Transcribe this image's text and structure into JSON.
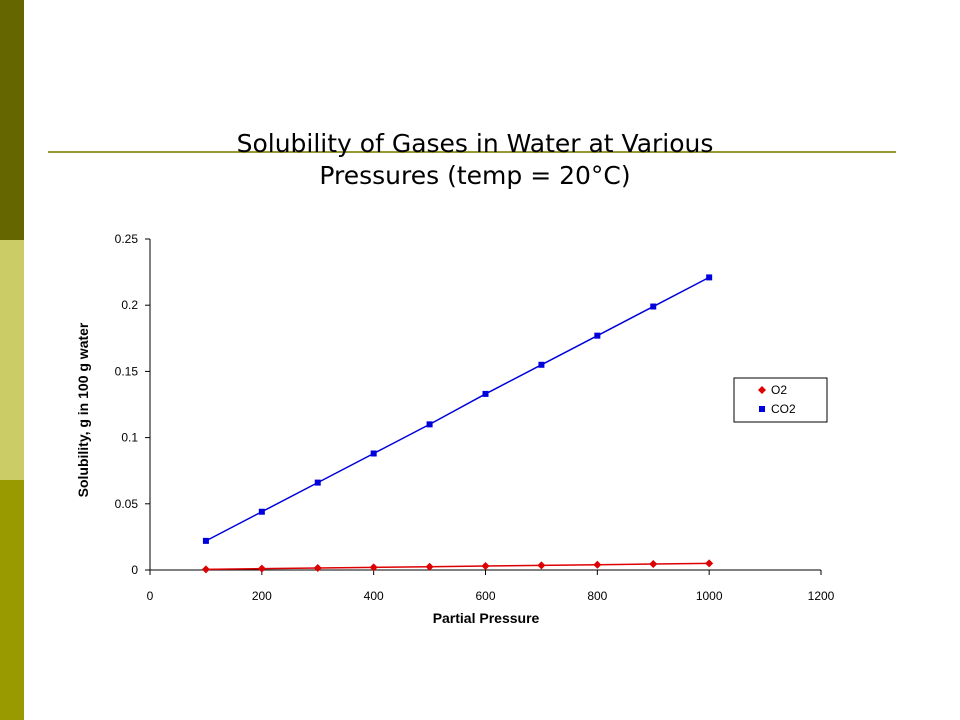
{
  "chart_data": {
    "type": "line",
    "title_lines": [
      "Solubility of Gases in Water at Various",
      "Pressures (temp = 20°C)"
    ],
    "xlabel": "Partial Pressure",
    "ylabel": "Solubility, g in 100 g water",
    "xlim": [
      0,
      1200
    ],
    "ylim": [
      0,
      0.25
    ],
    "x_ticks": [
      0,
      200,
      400,
      600,
      800,
      1000,
      1200
    ],
    "y_ticks": [
      0,
      0.05,
      0.1,
      0.15,
      0.2,
      0.25
    ],
    "x_tick_labels": [
      "0",
      "200",
      "400",
      "600",
      "800",
      "1000",
      "1200"
    ],
    "y_tick_labels": [
      "0",
      "0.05",
      "0.1",
      "0.15",
      "0.2",
      "0.25"
    ],
    "grid": false,
    "legend_position": "right",
    "series": [
      {
        "name": "O2",
        "color": "#dd0000",
        "marker": "diamond",
        "x": [
          100,
          200,
          300,
          400,
          500,
          600,
          700,
          800,
          900,
          1000
        ],
        "y": [
          0.0005,
          0.001,
          0.0015,
          0.002,
          0.0025,
          0.003,
          0.0035,
          0.004,
          0.0045,
          0.005
        ]
      },
      {
        "name": "CO2",
        "color": "#0000dd",
        "marker": "square",
        "x": [
          100,
          200,
          300,
          400,
          500,
          600,
          700,
          800,
          900,
          1000
        ],
        "y": [
          0.022,
          0.044,
          0.066,
          0.088,
          0.11,
          0.133,
          0.155,
          0.177,
          0.199,
          0.221
        ]
      }
    ]
  },
  "slide": {
    "band_colors": [
      "#666600",
      "#cccc66",
      "#999900"
    ],
    "rule_color": "#999933"
  }
}
